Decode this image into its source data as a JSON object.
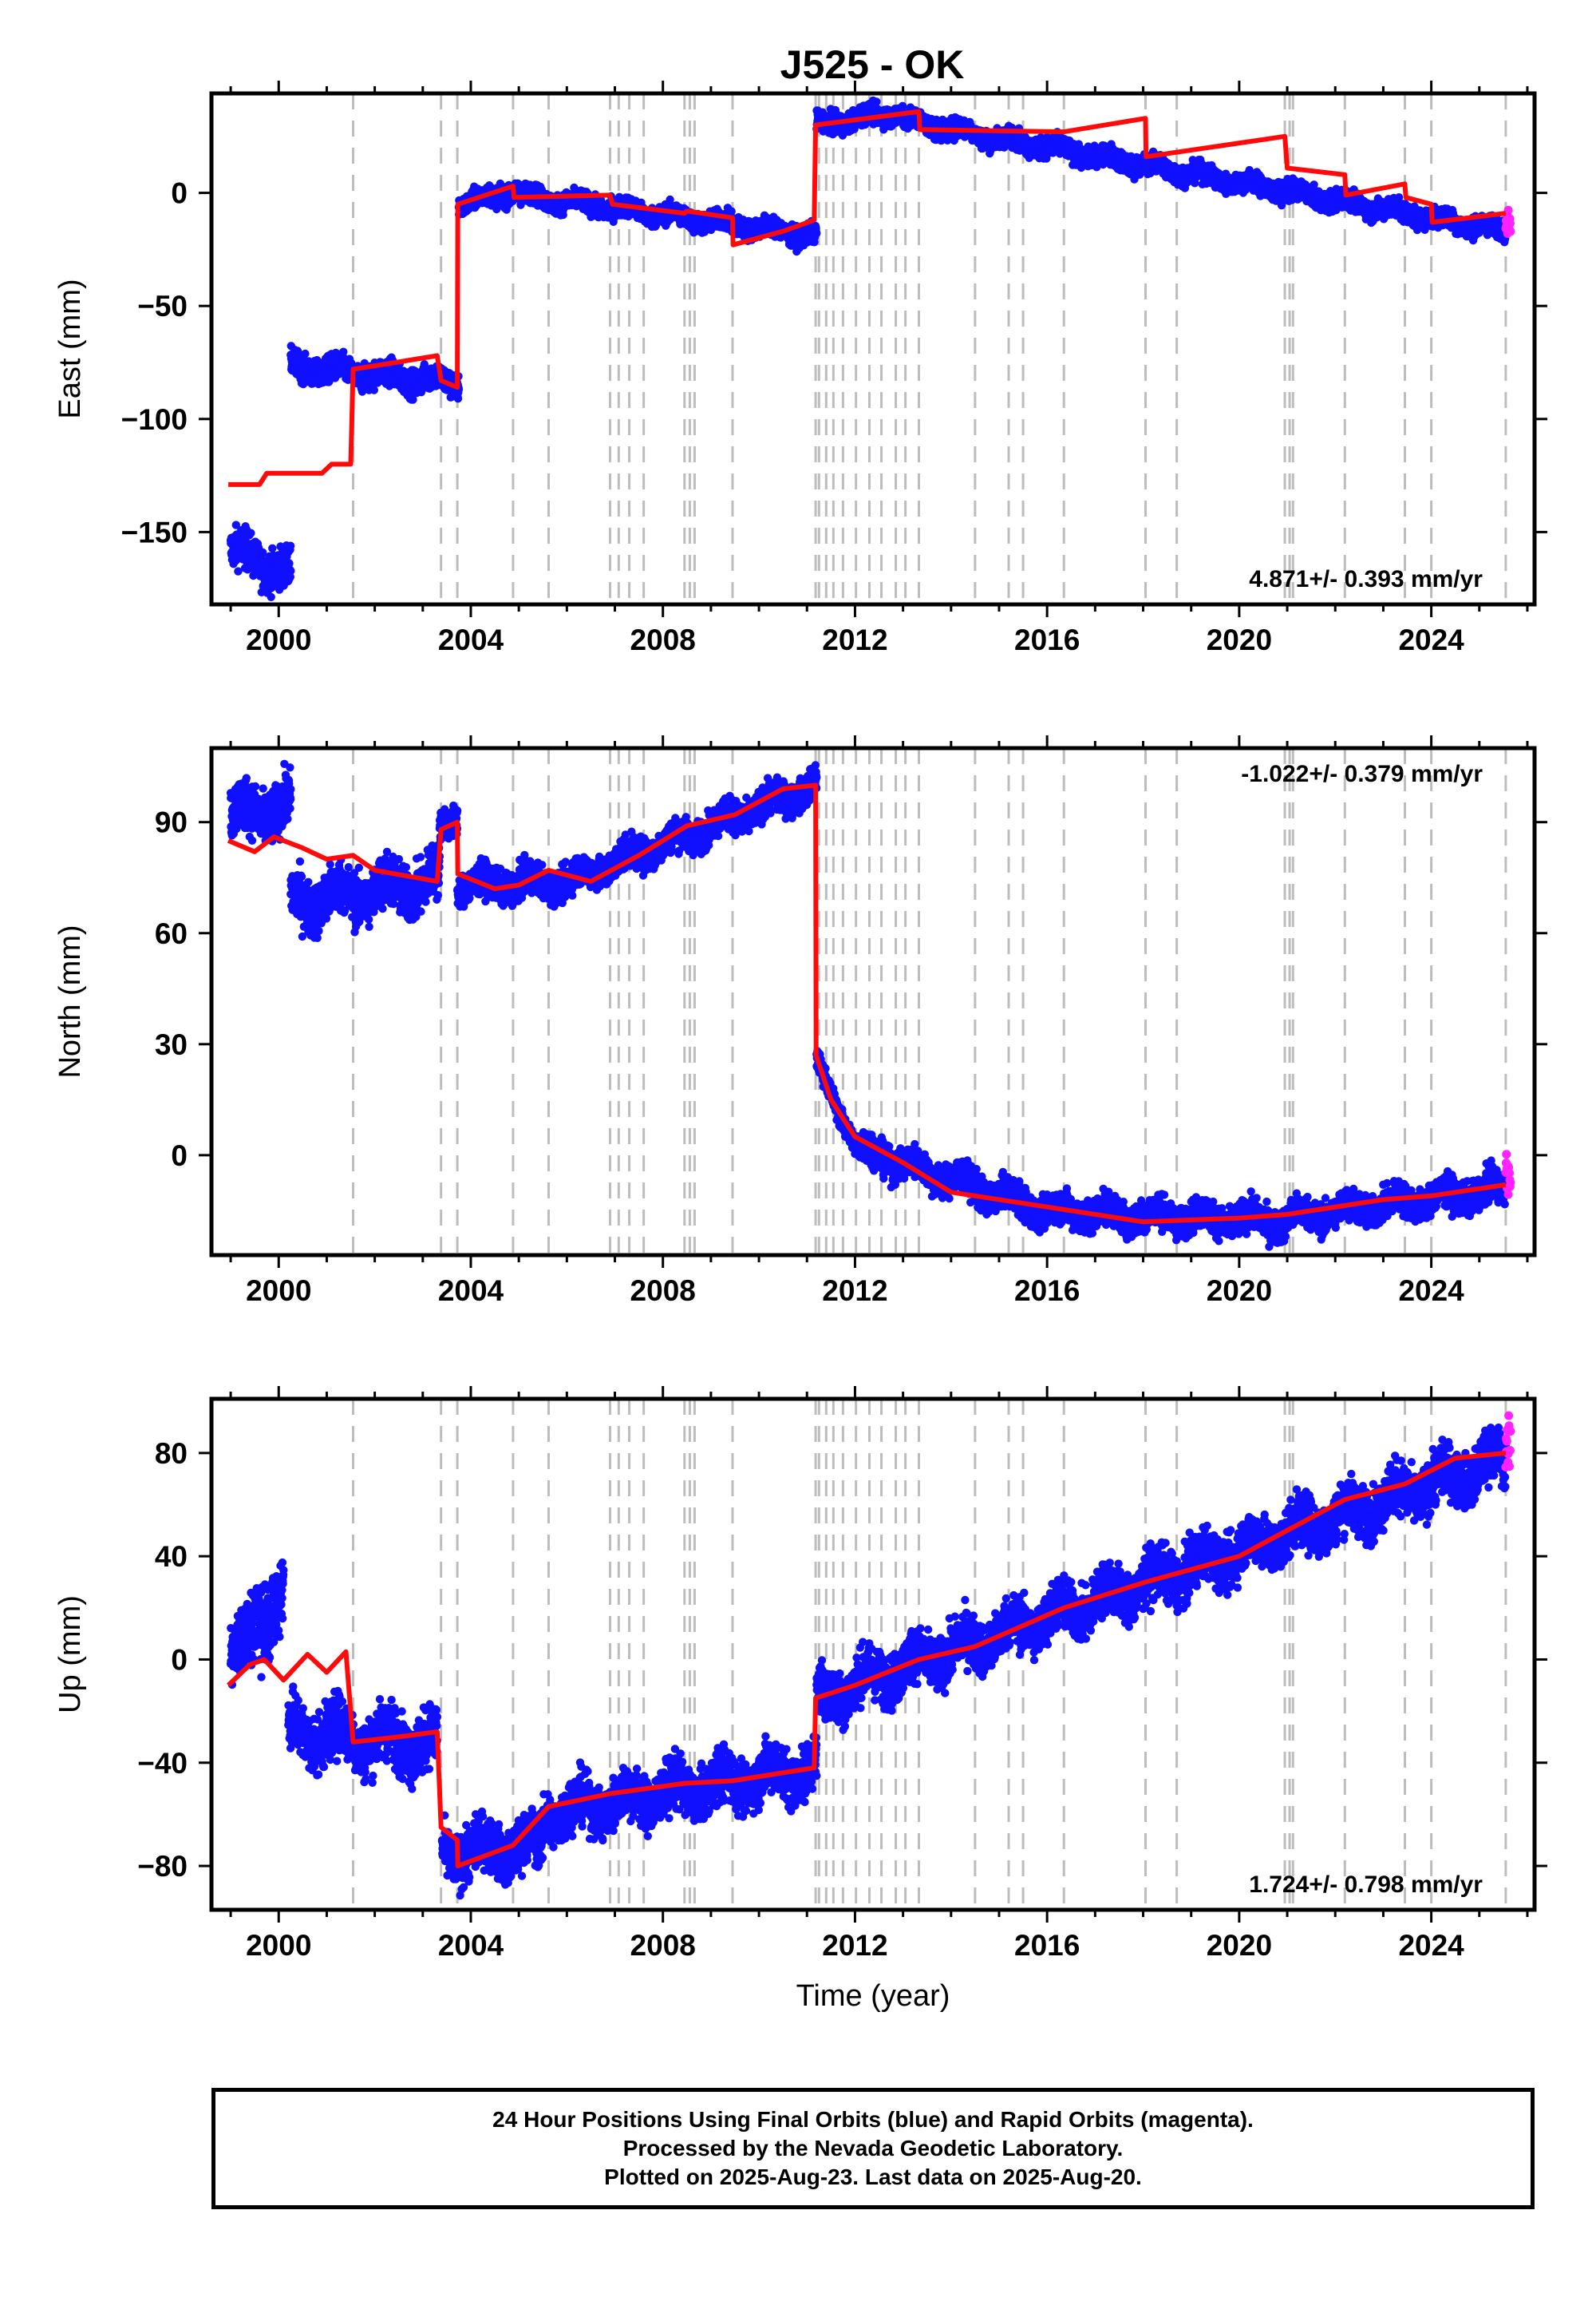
{
  "title": "J525 - OK",
  "colors": {
    "final_orbits": "#1010ff",
    "rapid_orbits": "#ff22ff",
    "model": "#ff0a0a",
    "event_lines": "#bdbdbd",
    "frame": "#000000"
  },
  "chart_data": [
    {
      "type": "scatter",
      "panel": "east",
      "ylabel": "East (mm)",
      "xlabel": "",
      "xlim": [
        1998.6,
        2026.15
      ],
      "ylim": [
        -182,
        44
      ],
      "xticks": [
        2000,
        2004,
        2008,
        2012,
        2016,
        2020,
        2024
      ],
      "yticks": [
        -150,
        -100,
        -50,
        0
      ],
      "rate_text": "4.871+/- 0.393 mm/yr",
      "rate_placement": "bottom-right",
      "event_lines": [
        2001.55,
        2003.38,
        2003.72,
        2004.88,
        2005.62,
        2006.9,
        2007.08,
        2007.3,
        2007.6,
        2008.45,
        2008.56,
        2008.66,
        2009.45,
        2011.18,
        2011.25,
        2011.4,
        2011.55,
        2011.75,
        2012.02,
        2012.3,
        2012.55,
        2012.85,
        2013.05,
        2013.33,
        2014.5,
        2015.2,
        2015.5,
        2016.35,
        2018.05,
        2018.7,
        2020.95,
        2021.05,
        2021.12,
        2022.2,
        2023.45,
        2024.0,
        2025.55
      ],
      "final_segments": [
        {
          "x0": 1999.0,
          "x1": 2000.25,
          "y0": -158,
          "y1": -168,
          "noise": 6
        },
        {
          "x0": 2000.25,
          "x1": 2003.75,
          "y0": -77,
          "y1": -84,
          "noise": 4
        },
        {
          "x0": 2003.75,
          "x1": 2005.0,
          "y0": -5,
          "y1": 1,
          "noise": 3
        },
        {
          "x0": 2005.0,
          "x1": 2011.2,
          "y0": -1,
          "y1": -19,
          "noise": 3
        },
        {
          "x0": 2011.2,
          "x1": 2013.0,
          "y0": 30,
          "y1": 36,
          "noise": 3
        },
        {
          "x0": 2013.0,
          "x1": 2025.55,
          "y0": 32,
          "y1": -17,
          "noise": 3
        }
      ],
      "rapid_segment": {
        "x0": 2025.55,
        "x1": 2025.65,
        "y0": -14,
        "y1": -14,
        "noise": 5
      },
      "model_steps": [
        [
          1998.95,
          -129
        ],
        [
          1999.6,
          -129
        ],
        [
          1999.75,
          -124
        ],
        [
          2000.9,
          -124
        ],
        [
          2001.1,
          -120
        ],
        [
          2001.5,
          -120
        ],
        [
          2001.55,
          -78
        ],
        [
          2003.3,
          -72
        ],
        [
          2003.38,
          -83
        ],
        [
          2003.72,
          -86
        ],
        [
          2003.73,
          -5
        ],
        [
          2004.88,
          3
        ],
        [
          2004.9,
          -2
        ],
        [
          2006.9,
          -1
        ],
        [
          2006.95,
          -5
        ],
        [
          2008.45,
          -9
        ],
        [
          2008.5,
          -8
        ],
        [
          2009.45,
          -11
        ],
        [
          2009.46,
          -23
        ],
        [
          2010.5,
          -17
        ],
        [
          2011.15,
          -12
        ],
        [
          2011.18,
          30
        ],
        [
          2013.33,
          36
        ],
        [
          2013.35,
          28
        ],
        [
          2016.35,
          27
        ],
        [
          2018.05,
          33
        ],
        [
          2018.06,
          16
        ],
        [
          2020.95,
          25
        ],
        [
          2021.0,
          11
        ],
        [
          2022.2,
          8
        ],
        [
          2022.22,
          -1
        ],
        [
          2023.45,
          4
        ],
        [
          2023.47,
          -2
        ],
        [
          2024.0,
          -5
        ],
        [
          2024.02,
          -13
        ],
        [
          2025.55,
          -9
        ]
      ]
    },
    {
      "type": "scatter",
      "panel": "north",
      "ylabel": "North (mm)",
      "xlabel": "",
      "xlim": [
        1998.6,
        2026.15
      ],
      "ylim": [
        -27,
        110
      ],
      "xticks": [
        2000,
        2004,
        2008,
        2012,
        2016,
        2020,
        2024
      ],
      "yticks": [
        0,
        30,
        60,
        90
      ],
      "rate_text": "-1.022+/- 0.379 mm/yr",
      "rate_placement": "top-right",
      "event_lines": [
        2001.55,
        2003.38,
        2003.72,
        2004.88,
        2005.62,
        2006.9,
        2007.08,
        2007.3,
        2007.6,
        2008.45,
        2008.56,
        2008.66,
        2009.45,
        2011.18,
        2011.25,
        2011.4,
        2011.55,
        2011.75,
        2012.02,
        2012.3,
        2012.55,
        2012.85,
        2013.05,
        2013.33,
        2014.5,
        2015.2,
        2015.5,
        2016.35,
        2018.05,
        2018.7,
        2020.95,
        2021.05,
        2021.12,
        2022.2,
        2023.45,
        2024.0,
        2025.55
      ],
      "final_segments": [
        {
          "x0": 1999.0,
          "x1": 2000.25,
          "y0": 92,
          "y1": 94,
          "noise": 5
        },
        {
          "x0": 2000.25,
          "x1": 2003.35,
          "y0": 68,
          "y1": 74,
          "noise": 5
        },
        {
          "x0": 2003.35,
          "x1": 2003.72,
          "y0": 88,
          "y1": 92,
          "noise": 3
        },
        {
          "x0": 2003.72,
          "x1": 2006.0,
          "y0": 73,
          "y1": 74,
          "noise": 3
        },
        {
          "x0": 2006.0,
          "x1": 2011.2,
          "y0": 74,
          "y1": 100,
          "noise": 3
        },
        {
          "x0": 2011.2,
          "x1": 2012.0,
          "y0": 25,
          "y1": 3,
          "noise": 2
        },
        {
          "x0": 2012.0,
          "x1": 2016.0,
          "y0": 2,
          "y1": -15,
          "noise": 3
        },
        {
          "x0": 2016.0,
          "x1": 2021.0,
          "y0": -15,
          "y1": -18,
          "noise": 3
        },
        {
          "x0": 2021.0,
          "x1": 2025.55,
          "y0": -17,
          "y1": -9,
          "noise": 3
        }
      ],
      "rapid_segment": {
        "x0": 2025.55,
        "x1": 2025.65,
        "y0": -5,
        "y1": -5,
        "noise": 5
      },
      "model_steps": [
        [
          1998.95,
          85
        ],
        [
          1999.5,
          82
        ],
        [
          1999.9,
          86
        ],
        [
          2000.5,
          83
        ],
        [
          2001.0,
          80
        ],
        [
          2001.55,
          81
        ],
        [
          2002.0,
          77
        ],
        [
          2003.3,
          74
        ],
        [
          2003.38,
          88
        ],
        [
          2003.72,
          90
        ],
        [
          2003.73,
          76
        ],
        [
          2004.5,
          72
        ],
        [
          2005.0,
          73
        ],
        [
          2005.62,
          77
        ],
        [
          2006.5,
          74
        ],
        [
          2007.5,
          81
        ],
        [
          2008.5,
          89
        ],
        [
          2009.5,
          92
        ],
        [
          2010.5,
          99
        ],
        [
          2011.18,
          100
        ],
        [
          2011.19,
          27
        ],
        [
          2011.5,
          15
        ],
        [
          2012.0,
          5
        ],
        [
          2013.0,
          -2
        ],
        [
          2014.0,
          -10
        ],
        [
          2016.0,
          -14
        ],
        [
          2018.0,
          -18
        ],
        [
          2020.0,
          -17
        ],
        [
          2021.0,
          -16
        ],
        [
          2023.0,
          -12
        ],
        [
          2024.0,
          -11
        ],
        [
          2025.55,
          -8
        ]
      ]
    },
    {
      "type": "scatter",
      "panel": "up",
      "ylabel": "Up (mm)",
      "xlabel": "Time (year)",
      "xlim": [
        1998.6,
        2026.15
      ],
      "ylim": [
        -97,
        101
      ],
      "xticks": [
        2000,
        2004,
        2008,
        2012,
        2016,
        2020,
        2024
      ],
      "yticks": [
        -80,
        -40,
        0,
        40,
        80
      ],
      "rate_text": "1.724+/- 0.798 mm/yr",
      "rate_placement": "bottom-right",
      "event_lines": [
        2001.55,
        2003.38,
        2003.72,
        2004.88,
        2005.62,
        2006.9,
        2007.08,
        2007.3,
        2007.6,
        2008.45,
        2008.56,
        2008.66,
        2009.45,
        2011.18,
        2011.25,
        2011.4,
        2011.55,
        2011.75,
        2012.02,
        2012.3,
        2012.55,
        2012.85,
        2013.05,
        2013.33,
        2014.5,
        2015.2,
        2015.5,
        2016.35,
        2018.05,
        2018.7,
        2020.95,
        2021.05,
        2021.12,
        2022.2,
        2023.45,
        2024.0,
        2025.55
      ],
      "final_segments": [
        {
          "x0": 1999.0,
          "x1": 1999.5,
          "y0": 0,
          "y1": 10,
          "noise": 8
        },
        {
          "x0": 1999.5,
          "x1": 2000.1,
          "y0": 20,
          "y1": 25,
          "noise": 12
        },
        {
          "x0": 2000.2,
          "x1": 2003.3,
          "y0": -28,
          "y1": -33,
          "noise": 8
        },
        {
          "x0": 2003.4,
          "x1": 2005.5,
          "y0": -75,
          "y1": -72,
          "noise": 7
        },
        {
          "x0": 2005.5,
          "x1": 2011.2,
          "y0": -60,
          "y1": -42,
          "noise": 7
        },
        {
          "x0": 2011.2,
          "x1": 2025.55,
          "y0": -15,
          "y1": 78,
          "noise": 7
        }
      ],
      "rapid_segment": {
        "x0": 2025.55,
        "x1": 2025.65,
        "y0": 82,
        "y1": 82,
        "noise": 9
      },
      "model_steps": [
        [
          1998.95,
          -10
        ],
        [
          1999.4,
          -2
        ],
        [
          1999.7,
          0
        ],
        [
          2000.1,
          -8
        ],
        [
          2000.6,
          2
        ],
        [
          2001.0,
          -5
        ],
        [
          2001.4,
          3
        ],
        [
          2001.55,
          -32
        ],
        [
          2002.5,
          -30
        ],
        [
          2003.3,
          -28
        ],
        [
          2003.38,
          -65
        ],
        [
          2003.72,
          -70
        ],
        [
          2003.73,
          -80
        ],
        [
          2004.88,
          -72
        ],
        [
          2005.62,
          -57
        ],
        [
          2006.9,
          -52
        ],
        [
          2008.45,
          -48
        ],
        [
          2009.45,
          -47
        ],
        [
          2011.15,
          -42
        ],
        [
          2011.18,
          -15
        ],
        [
          2012.0,
          -10
        ],
        [
          2013.33,
          0
        ],
        [
          2014.5,
          5
        ],
        [
          2016.35,
          20
        ],
        [
          2018.05,
          30
        ],
        [
          2020.0,
          40
        ],
        [
          2021.0,
          50
        ],
        [
          2022.2,
          62
        ],
        [
          2023.45,
          68
        ],
        [
          2024.5,
          78
        ],
        [
          2025.55,
          80
        ]
      ]
    }
  ],
  "footer": {
    "line1": "24 Hour Positions Using Final Orbits (blue) and Rapid Orbits (magenta).",
    "line2": "Processed by the Nevada Geodetic Laboratory.",
    "line3": "Plotted on 2025-Aug-23. Last data on 2025-Aug-20."
  }
}
